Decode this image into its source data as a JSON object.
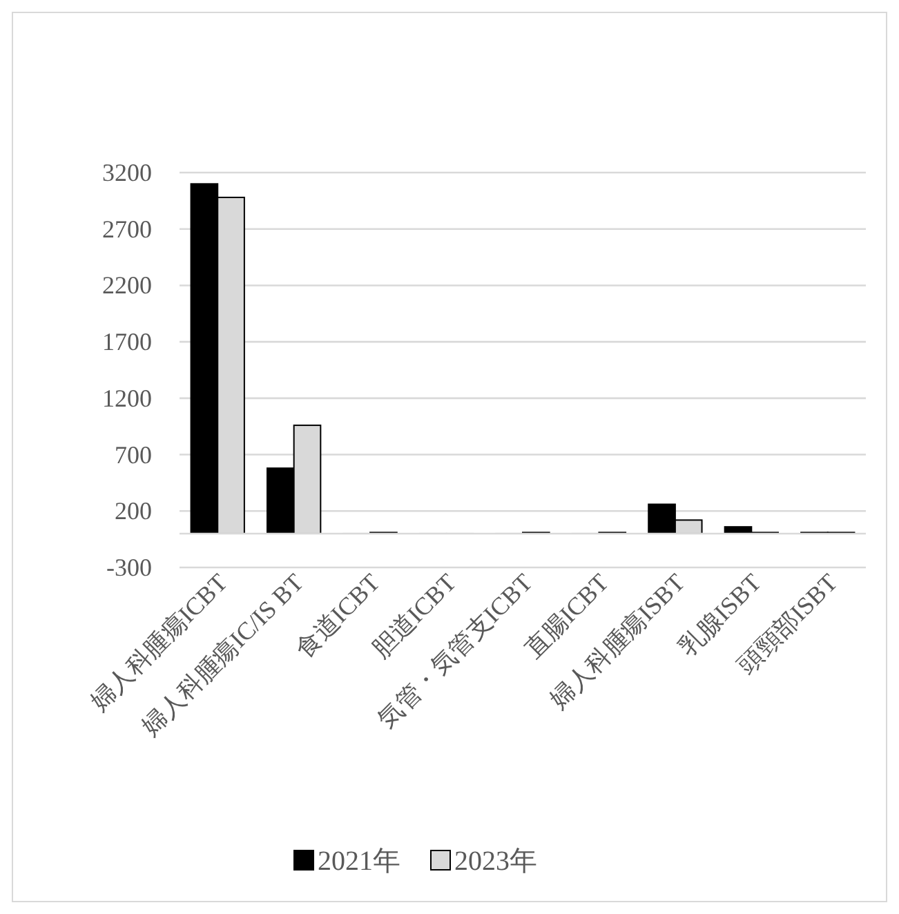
{
  "chart_data": {
    "type": "bar",
    "categories": [
      "婦人科腫瘍ICBT",
      "婦人科腫瘍IC/IS BT",
      "食道ICBT",
      "胆道ICBT",
      "気管・気管支ICBT",
      "直腸ICBT",
      "婦人科腫瘍ISBT",
      "乳腺ISBT",
      "頭頸部ISBT"
    ],
    "series": [
      {
        "name": "2021年",
        "color": "#000000",
        "values": [
          3100,
          580,
          0,
          0,
          0,
          0,
          260,
          60,
          10
        ]
      },
      {
        "name": "2023年",
        "color": "#d9d9d9",
        "values": [
          2980,
          960,
          10,
          0,
          10,
          10,
          120,
          10,
          10
        ]
      }
    ],
    "ylim": [
      -300,
      3200
    ],
    "yticks": [
      -300,
      200,
      700,
      1200,
      1700,
      2200,
      2700,
      3200
    ],
    "grid": "y",
    "legend": "bottom"
  }
}
